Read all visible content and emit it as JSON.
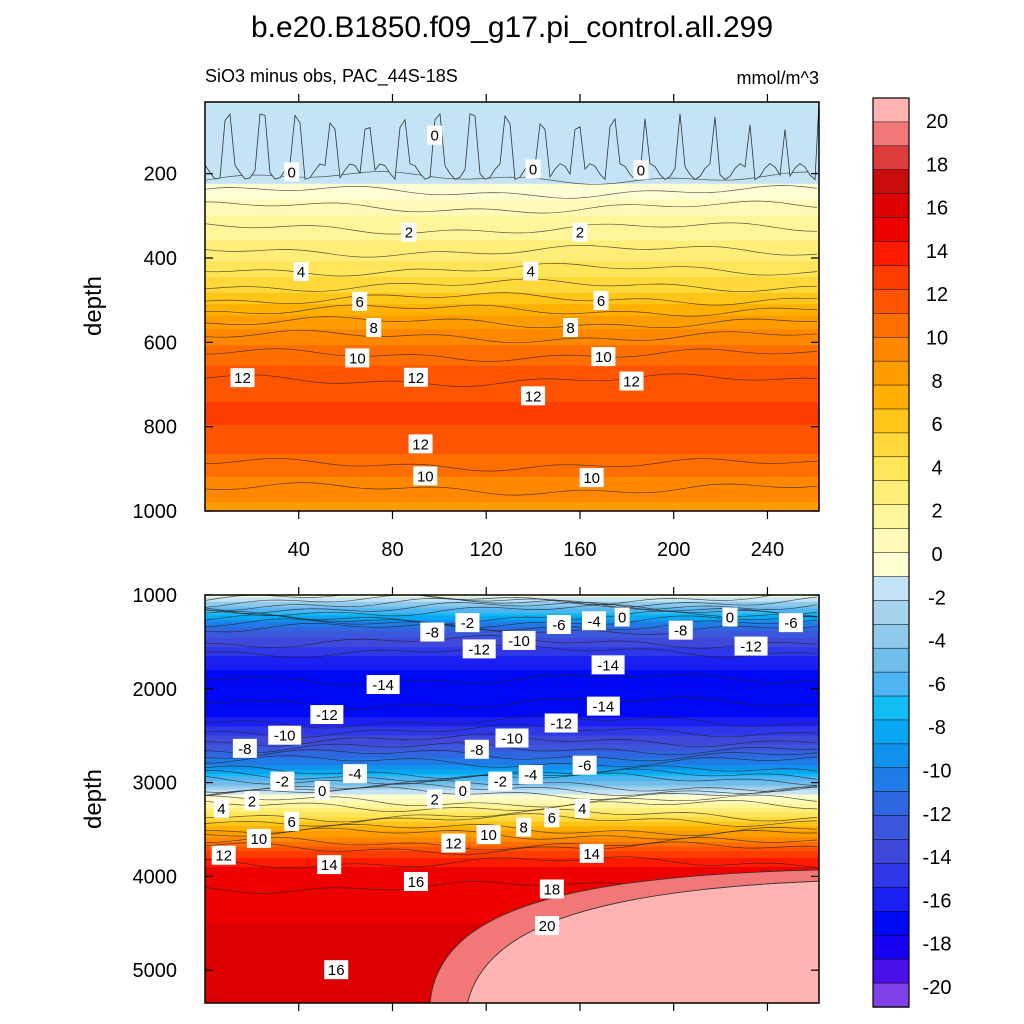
{
  "chart_data": {
    "type": "contour",
    "title": "b.e20.B1850.f09_g17.pi_control.all.299",
    "subtitle": "SiO3 minus obs, PAC_44S-18S",
    "units": "mmol/m^3",
    "colorbar": {
      "levels": [
        -20,
        -18,
        -16,
        -14,
        -12,
        -10,
        -8,
        -6,
        -4,
        -2,
        0,
        2,
        4,
        6,
        8,
        10,
        12,
        14,
        16,
        18,
        20
      ],
      "tick_labels": [
        "20",
        "18",
        "16",
        "14",
        "12",
        "10",
        "8",
        "6",
        "4",
        "2",
        "0",
        "-2",
        "-4",
        "-6",
        "-8",
        "-10",
        "-12",
        "-14",
        "-16",
        "-18",
        "-20"
      ],
      "colors": [
        "#ffb3b3",
        "#f27878",
        "#de3c3c",
        "#c80c0c",
        "#dc0000",
        "#ee0000",
        "#ff1a00",
        "#ff3c00",
        "#ff5500",
        "#ff6e00",
        "#ff8800",
        "#ff9c00",
        "#ffb000",
        "#ffc519",
        "#ffd83c",
        "#ffe55a",
        "#ffee7a",
        "#fff59a",
        "#fffab8",
        "#fffdd2",
        "#c4e4f5",
        "#a6d4ee",
        "#8fcaeb",
        "#70bdeb",
        "#4fb4f2",
        "#12bcf5",
        "#09a7f3",
        "#1190ec",
        "#217be7",
        "#2f67e1",
        "#3c56dc",
        "#3f48da",
        "#2f38e8",
        "#1a20f2",
        "#0009f6",
        "#1700f0",
        "#4a10ea",
        "#8040e8"
      ]
    },
    "panels": [
      {
        "name": "upper",
        "xlabel": "",
        "ylabel": "depth",
        "xlim": [
          0,
          262
        ],
        "ylim": [
          1000,
          30
        ],
        "xticks": [
          40,
          80,
          120,
          160,
          200,
          240
        ],
        "yticks": [
          200,
          400,
          600,
          800,
          1000
        ],
        "profile": [
          [
            30,
            -1
          ],
          [
            200,
            -0.3
          ],
          [
            260,
            1.5
          ],
          [
            300,
            2.5
          ],
          [
            360,
            3.5
          ],
          [
            420,
            4.8
          ],
          [
            480,
            6.4
          ],
          [
            540,
            8.6
          ],
          [
            600,
            10.4
          ],
          [
            660,
            11.6
          ],
          [
            720,
            12.4
          ],
          [
            780,
            12.7
          ],
          [
            840,
            12.0
          ],
          [
            900,
            10.8
          ],
          [
            960,
            9.8
          ],
          [
            1000,
            9.2
          ]
        ],
        "contour_labels": [
          {
            "text": "0",
            "x": 98,
            "y": 110
          },
          {
            "text": "0",
            "x": 140,
            "y": 190
          },
          {
            "text": "0",
            "x": 37,
            "y": 197
          },
          {
            "text": "0",
            "x": 186,
            "y": 192
          },
          {
            "text": "2",
            "x": 87,
            "y": 340
          },
          {
            "text": "2",
            "x": 160,
            "y": 340
          },
          {
            "text": "4",
            "x": 41,
            "y": 433
          },
          {
            "text": "4",
            "x": 139,
            "y": 432
          },
          {
            "text": "6",
            "x": 66,
            "y": 504
          },
          {
            "text": "6",
            "x": 169,
            "y": 502
          },
          {
            "text": "8",
            "x": 72,
            "y": 566
          },
          {
            "text": "8",
            "x": 156,
            "y": 566
          },
          {
            "text": "10",
            "x": 65,
            "y": 638
          },
          {
            "text": "10",
            "x": 170,
            "y": 635
          },
          {
            "text": "12",
            "x": 16,
            "y": 685
          },
          {
            "text": "12",
            "x": 90,
            "y": 684
          },
          {
            "text": "12",
            "x": 140,
            "y": 728
          },
          {
            "text": "12",
            "x": 182,
            "y": 693
          },
          {
            "text": "12",
            "x": 92,
            "y": 842
          },
          {
            "text": "10",
            "x": 94,
            "y": 918
          },
          {
            "text": "10",
            "x": 165,
            "y": 922
          }
        ]
      },
      {
        "name": "lower",
        "xlabel": "",
        "ylabel": "depth",
        "xlim": [
          0,
          262
        ],
        "ylim": [
          5350,
          1000
        ],
        "xticks": [
          40,
          80,
          120,
          160,
          200,
          240
        ],
        "yticks": [
          1000,
          2000,
          3000,
          4000,
          5000
        ],
        "profile": [
          [
            1000,
            1
          ],
          [
            1200,
            -5
          ],
          [
            1400,
            -10
          ],
          [
            1700,
            -13
          ],
          [
            2000,
            -14.5
          ],
          [
            2300,
            -13.5
          ],
          [
            2600,
            -10.5
          ],
          [
            2850,
            -7
          ],
          [
            3000,
            -3
          ],
          [
            3150,
            1
          ],
          [
            3300,
            4
          ],
          [
            3450,
            7
          ],
          [
            3600,
            10
          ],
          [
            3750,
            13
          ],
          [
            3900,
            14.5
          ],
          [
            4200,
            15.2
          ],
          [
            4600,
            15.6
          ],
          [
            5000,
            16
          ],
          [
            5350,
            16.2
          ]
        ],
        "contour_labels": [
          {
            "text": "-2",
            "x": 112,
            "y": 1300
          },
          {
            "text": "0",
            "x": 178,
            "y": 1240
          },
          {
            "text": "0",
            "x": 224,
            "y": 1240
          },
          {
            "text": "-4",
            "x": 166,
            "y": 1280
          },
          {
            "text": "-6",
            "x": 151,
            "y": 1320
          },
          {
            "text": "-6",
            "x": 250,
            "y": 1300
          },
          {
            "text": "-8",
            "x": 97,
            "y": 1400
          },
          {
            "text": "-8",
            "x": 203,
            "y": 1380
          },
          {
            "text": "-10",
            "x": 134,
            "y": 1490
          },
          {
            "text": "-12",
            "x": 117,
            "y": 1580
          },
          {
            "text": "-12",
            "x": 233,
            "y": 1550
          },
          {
            "text": "-14",
            "x": 172,
            "y": 1750
          },
          {
            "text": "-14",
            "x": 76,
            "y": 1960
          },
          {
            "text": "-14",
            "x": 170,
            "y": 2190
          },
          {
            "text": "-12",
            "x": 52,
            "y": 2280
          },
          {
            "text": "-12",
            "x": 152,
            "y": 2370
          },
          {
            "text": "-10",
            "x": 34,
            "y": 2500
          },
          {
            "text": "-10",
            "x": 131,
            "y": 2530
          },
          {
            "text": "-8",
            "x": 17,
            "y": 2640
          },
          {
            "text": "-8",
            "x": 116,
            "y": 2650
          },
          {
            "text": "-6",
            "x": 162,
            "y": 2820
          },
          {
            "text": "-4",
            "x": 64,
            "y": 2910
          },
          {
            "text": "-4",
            "x": 139,
            "y": 2920
          },
          {
            "text": "-2",
            "x": 33,
            "y": 2990
          },
          {
            "text": "-2",
            "x": 126,
            "y": 2990
          },
          {
            "text": "0",
            "x": 50,
            "y": 3090
          },
          {
            "text": "0",
            "x": 110,
            "y": 3090
          },
          {
            "text": "2",
            "x": 20,
            "y": 3200
          },
          {
            "text": "2",
            "x": 98,
            "y": 3180
          },
          {
            "text": "4",
            "x": 7,
            "y": 3280
          },
          {
            "text": "4",
            "x": 161,
            "y": 3280
          },
          {
            "text": "6",
            "x": 37,
            "y": 3420
          },
          {
            "text": "6",
            "x": 148,
            "y": 3380
          },
          {
            "text": "8",
            "x": 136,
            "y": 3480
          },
          {
            "text": "10",
            "x": 23,
            "y": 3600
          },
          {
            "text": "10",
            "x": 121,
            "y": 3560
          },
          {
            "text": "12",
            "x": 8,
            "y": 3780
          },
          {
            "text": "12",
            "x": 106,
            "y": 3650
          },
          {
            "text": "14",
            "x": 53,
            "y": 3880
          },
          {
            "text": "14",
            "x": 165,
            "y": 3760
          },
          {
            "text": "16",
            "x": 90,
            "y": 4060
          },
          {
            "text": "18",
            "x": 148,
            "y": 4140
          },
          {
            "text": "20",
            "x": 146,
            "y": 4530
          },
          {
            "text": "16",
            "x": 56,
            "y": 5000
          }
        ]
      }
    ]
  }
}
